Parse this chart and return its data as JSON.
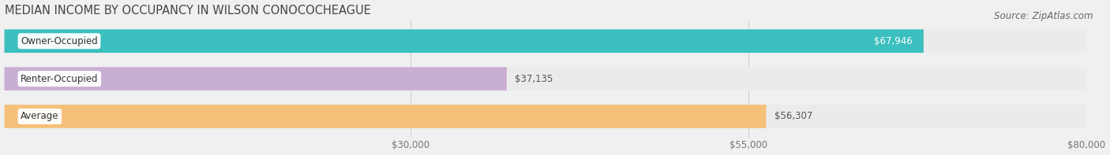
{
  "title": "MEDIAN INCOME BY OCCUPANCY IN WILSON CONOCOCHEAGUE",
  "source": "Source: ZipAtlas.com",
  "categories": [
    "Owner-Occupied",
    "Renter-Occupied",
    "Average"
  ],
  "values": [
    67946,
    37135,
    56307
  ],
  "labels": [
    "$67,946",
    "$37,135",
    "$56,307"
  ],
  "label_inside": [
    true,
    false,
    false
  ],
  "label_colors": [
    "#ffffff",
    "#555555",
    "#555555"
  ],
  "bar_colors": [
    "#3bbfbf",
    "#c9aed4",
    "#f5c07a"
  ],
  "bar_bg_colors": [
    "#ebebeb",
    "#ebebeb",
    "#ebebeb"
  ],
  "xlim": [
    0,
    80000
  ],
  "xticks": [
    30000,
    55000,
    80000
  ],
  "xtick_labels": [
    "$30,000",
    "$55,000",
    "$80,000"
  ],
  "title_fontsize": 10.5,
  "source_fontsize": 8.5,
  "cat_label_fontsize": 8.5,
  "val_label_fontsize": 8.5,
  "bar_height": 0.62,
  "background_color": "#f0f0f0",
  "bar_gap": 0.38
}
